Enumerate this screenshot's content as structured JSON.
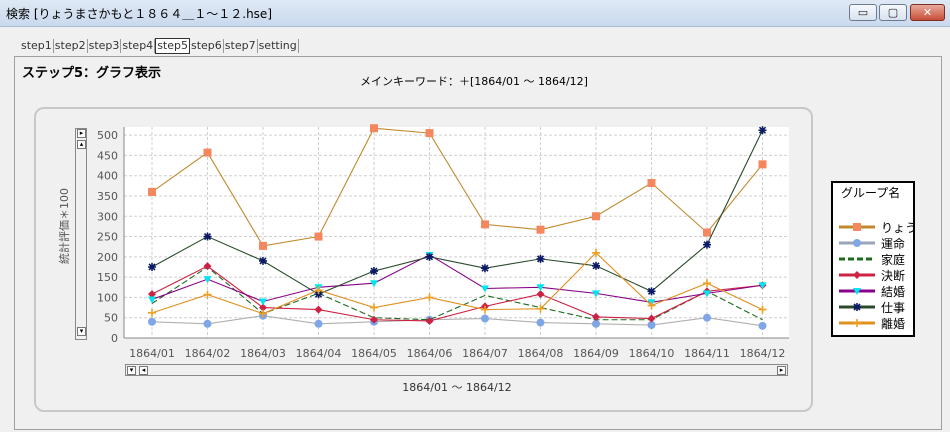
{
  "window": {
    "title": "検索 [りょうまさかもと１８６４＿１～１２.hse]",
    "buttons": {
      "minimize": "▭",
      "maximize": "▢",
      "close": "✕"
    }
  },
  "tabs": [
    {
      "label": "step1",
      "active": false
    },
    {
      "label": "step2",
      "active": false
    },
    {
      "label": "step3",
      "active": false
    },
    {
      "label": "step4",
      "active": false
    },
    {
      "label": "step5",
      "active": true
    },
    {
      "label": "step6",
      "active": false
    },
    {
      "label": "step7",
      "active": false
    },
    {
      "label": "setting",
      "active": false
    }
  ],
  "page": {
    "heading": "ステップ5：グラフ表示",
    "main_keyword": "メインキーワード：＋[1864/01 ～ 1864/12]"
  },
  "legend": {
    "title": "グループ名"
  },
  "chart_data": {
    "type": "line",
    "xlabel": "1864/01 ～ 1864/12",
    "ylabel": "統計評価＊100",
    "ylim": [
      0,
      520
    ],
    "yticks": [
      0,
      50,
      100,
      150,
      200,
      250,
      300,
      350,
      400,
      450,
      500
    ],
    "grid": true,
    "legend_position": "right",
    "categories": [
      "1864/01",
      "1864/02",
      "1864/03",
      "1864/04",
      "1864/05",
      "1864/06",
      "1864/07",
      "1864/08",
      "1864/09",
      "1864/10",
      "1864/11",
      "1864/12"
    ],
    "series": [
      {
        "name": "りょう",
        "color": "#f4875d",
        "line": "#c08a2c",
        "marker": "square",
        "dash": false,
        "values": [
          360,
          457,
          227,
          250,
          517,
          505,
          280,
          267,
          300,
          382,
          260,
          428
        ]
      },
      {
        "name": "運命",
        "color": "#7fa6e6",
        "line": "#b0b0b0",
        "marker": "circle",
        "dash": false,
        "values": [
          40,
          35,
          55,
          35,
          40,
          45,
          48,
          38,
          35,
          32,
          50,
          30
        ]
      },
      {
        "name": "家庭",
        "color": "#1c6b1c",
        "line": "#1c6b1c",
        "marker": "none",
        "dash": true,
        "values": [
          85,
          175,
          60,
          110,
          50,
          45,
          105,
          75,
          45,
          45,
          115,
          45
        ]
      },
      {
        "name": "決断",
        "color": "#cc2244",
        "line": "#cc2244",
        "marker": "diamond",
        "dash": false,
        "values": [
          108,
          177,
          75,
          70,
          45,
          42,
          78,
          108,
          52,
          48,
          115,
          130
        ]
      },
      {
        "name": "結婚",
        "color": "#00e5ee",
        "line": "#880088",
        "marker": "triangle",
        "dash": false,
        "values": [
          95,
          145,
          90,
          125,
          135,
          205,
          122,
          125,
          110,
          88,
          110,
          130
        ]
      },
      {
        "name": "仕事",
        "color": "#0a1a66",
        "line": "#2b4a2b",
        "marker": "star",
        "dash": false,
        "values": [
          175,
          250,
          190,
          108,
          165,
          200,
          172,
          195,
          178,
          115,
          230,
          512
        ]
      },
      {
        "name": "離婚",
        "color": "#f0a020",
        "line": "#e09020",
        "marker": "plus",
        "dash": false,
        "values": [
          62,
          107,
          60,
          118,
          75,
          100,
          70,
          72,
          210,
          80,
          135,
          70
        ]
      }
    ]
  }
}
